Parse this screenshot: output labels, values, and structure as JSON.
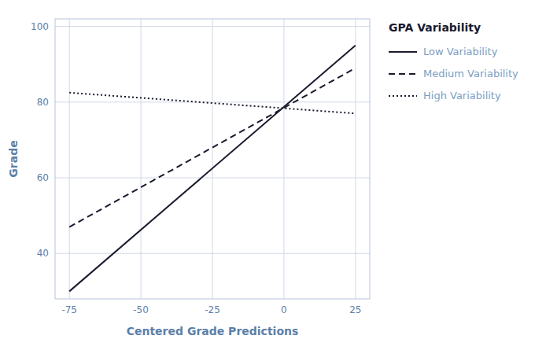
{
  "chart_data": {
    "type": "line",
    "xlabel": "Centered Grade Predictions",
    "ylabel": "Grade",
    "legend_title": "GPA Variability",
    "legend": "right",
    "grid": true,
    "xlim": [
      -80,
      30
    ],
    "ylim": [
      28,
      102
    ],
    "xticks": [
      -75,
      -50,
      -25,
      0,
      25
    ],
    "yticks": [
      40,
      60,
      80,
      100
    ],
    "x": [
      -75,
      25
    ],
    "series": [
      {
        "name": "Low Variability",
        "color": "#1a1a2e",
        "line_style": "solid",
        "values": [
          30,
          95
        ]
      },
      {
        "name": "Medium Variability",
        "color": "#1a1a2e",
        "line_style": "dashed",
        "values": [
          47,
          89
        ]
      },
      {
        "name": "High Variability",
        "color": "#1a1a2e",
        "line_style": "dotted",
        "values": [
          82.5,
          77
        ]
      }
    ]
  }
}
